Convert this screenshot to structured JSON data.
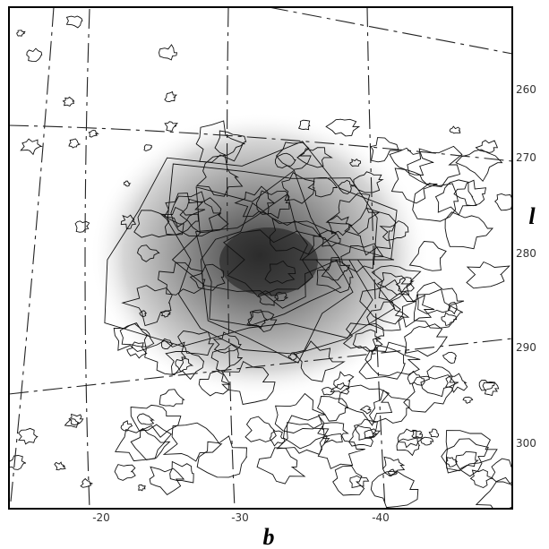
{
  "axes": {
    "b": {
      "label": "b",
      "ticks": [
        "-20",
        "-30",
        "-40"
      ]
    },
    "l": {
      "label": "l",
      "ticks": [
        "260",
        "270",
        "280",
        "290",
        "300"
      ]
    }
  }
}
